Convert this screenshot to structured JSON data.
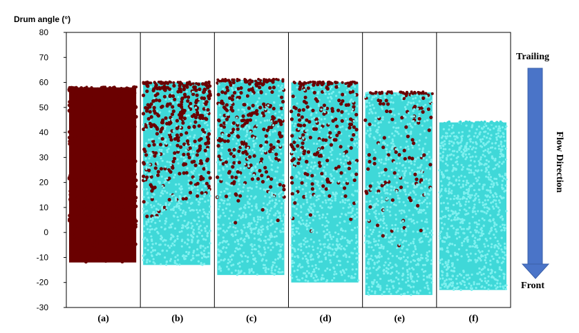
{
  "chart_data": {
    "type": "scatter",
    "ylabel": "Drum angle (°)",
    "ylim": [
      -30,
      80
    ],
    "yticks": [
      80,
      70,
      60,
      50,
      40,
      30,
      20,
      10,
      0,
      -10,
      -20,
      -30
    ],
    "panels": [
      {
        "label": "(a)",
        "top": 58,
        "bottom": -12,
        "mix": 1.0
      },
      {
        "label": "(b)",
        "top": 60,
        "bottom": -13,
        "mix": 0.55
      },
      {
        "label": "(c)",
        "top": 61,
        "bottom": -17,
        "mix": 0.45
      },
      {
        "label": "(d)",
        "top": 60,
        "bottom": -20,
        "mix": 0.35
      },
      {
        "label": "(e)",
        "top": 56,
        "bottom": -25,
        "mix": 0.18
      },
      {
        "label": "(f)",
        "top": 44,
        "bottom": -23,
        "mix": 0.0
      }
    ],
    "particle_colors": {
      "tracer": "#6a0000",
      "bulk": "#3fd8d8"
    },
    "arrow": {
      "top_label": "Trailing",
      "bottom_label": "Front",
      "side_label": "Flow Direction",
      "color": "#4a74c8"
    }
  }
}
